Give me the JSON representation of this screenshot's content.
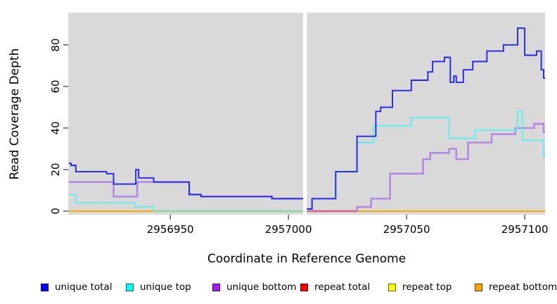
{
  "legend": [
    {
      "label": "unique total",
      "color": "#0000FF"
    },
    {
      "label": "unique top",
      "color": "#00FFFF"
    },
    {
      "label": "unique bottom",
      "color": "#A020F0"
    },
    {
      "label": "repeat total",
      "color": "#FF0000"
    },
    {
      "label": "repeat top",
      "color": "#FFFF00"
    },
    {
      "label": "repeat bottom",
      "color": "#FFA500"
    }
  ],
  "chart_data": {
    "type": "line",
    "subtype": "step",
    "title": "",
    "xlabel": "Coordinate in Reference Genome",
    "ylabel": "Read Coverage Depth",
    "x_ticks": [
      2956950,
      2957000,
      2957050,
      2957100
    ],
    "y_ticks": [
      0,
      20,
      40,
      60,
      80
    ],
    "x_range": [
      2956906.8,
      2957108.6
    ],
    "y_range": [
      0,
      95.5
    ],
    "plot_bg": "#D9D9D9",
    "grid": false,
    "legend_position": "bottom",
    "gap": {
      "x_start": 2957006.2,
      "x_end": 2957007.8,
      "color": "#FFFFFF"
    },
    "series": [
      {
        "name": "repeat total",
        "color": "#E02020",
        "width": 2,
        "points": [
          [
            2956907,
            0
          ],
          [
            2957109,
            0
          ]
        ]
      },
      {
        "name": "repeat top",
        "color": "#FFFF00",
        "width": 2,
        "points": [
          [
            2956907,
            0
          ],
          [
            2957109,
            0
          ]
        ]
      },
      {
        "name": "repeat bottom",
        "color": "#FFA500",
        "width": 2,
        "points": [
          [
            2956907,
            0
          ],
          [
            2957109,
            0
          ]
        ]
      },
      {
        "name": "unique bottom",
        "color": "#B184E3",
        "width": 2.4,
        "points": [
          [
            2956907,
            14
          ],
          [
            2956926,
            7
          ],
          [
            2956936,
            14
          ],
          [
            2956958,
            8
          ],
          [
            2956963,
            7
          ],
          [
            2956993,
            6
          ],
          [
            2957007,
            0
          ],
          [
            2957029,
            2
          ],
          [
            2957035,
            6
          ],
          [
            2957043,
            18
          ],
          [
            2957057,
            25
          ],
          [
            2957060,
            28
          ],
          [
            2957068,
            30
          ],
          [
            2957071,
            25
          ],
          [
            2957076,
            33
          ],
          [
            2957086,
            37
          ],
          [
            2957096,
            40
          ],
          [
            2957104,
            42
          ],
          [
            2957108,
            38
          ]
        ]
      },
      {
        "name": "unique top",
        "color": "#6FE9EC",
        "width": 2.2,
        "points": [
          [
            2956907,
            8
          ],
          [
            2956910,
            4
          ],
          [
            2956935,
            2
          ],
          [
            2956943,
            0
          ],
          [
            2957010,
            6
          ],
          [
            2957020,
            19
          ],
          [
            2957029,
            33
          ],
          [
            2957036,
            41
          ],
          [
            2957052,
            45
          ],
          [
            2957068,
            35
          ],
          [
            2957079,
            39
          ],
          [
            2957097,
            48
          ],
          [
            2957099,
            34
          ],
          [
            2957108,
            26
          ]
        ]
      },
      {
        "name": "unique total",
        "color": "#2525E8",
        "width": 1.9,
        "points": [
          [
            2956907,
            23
          ],
          [
            2956908,
            22
          ],
          [
            2956910,
            19
          ],
          [
            2956923,
            18
          ],
          [
            2956926,
            13
          ],
          [
            2956935.4,
            20
          ],
          [
            2956936.6,
            16
          ],
          [
            2956943,
            14
          ],
          [
            2956958,
            8
          ],
          [
            2956963,
            7
          ],
          [
            2956993,
            6
          ],
          [
            2957007,
            1
          ],
          [
            2957010,
            6
          ],
          [
            2957020,
            19
          ],
          [
            2957029,
            36
          ],
          [
            2957037,
            48
          ],
          [
            2957039,
            50
          ],
          [
            2957044,
            58
          ],
          [
            2957052,
            63
          ],
          [
            2957059,
            67
          ],
          [
            2957061,
            72
          ],
          [
            2957066,
            74
          ],
          [
            2957068.5,
            62
          ],
          [
            2957070,
            65
          ],
          [
            2957071,
            62
          ],
          [
            2957074,
            68
          ],
          [
            2957078,
            72
          ],
          [
            2957084,
            77
          ],
          [
            2957091,
            80
          ],
          [
            2957097,
            88
          ],
          [
            2957100,
            75
          ],
          [
            2957105,
            77
          ],
          [
            2957107,
            68
          ],
          [
            2957108,
            64
          ]
        ]
      }
    ],
    "zero_line_overlap_artifacts": [
      {
        "from": 2956943,
        "to": 2957006.2,
        "color": "#8FD48F"
      },
      {
        "from": 2957007.8,
        "to": 2957029,
        "color": "#E0607C"
      }
    ]
  }
}
